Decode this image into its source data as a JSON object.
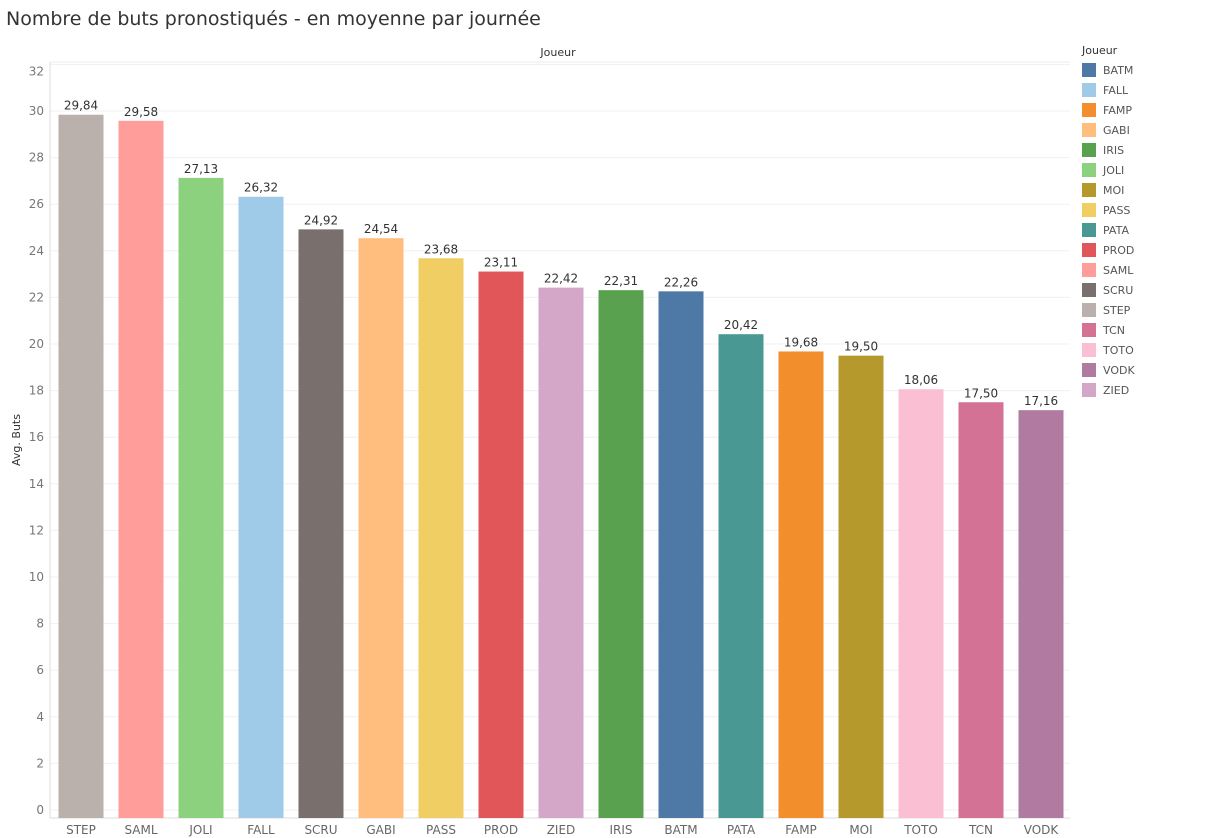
{
  "title": "Nombre de buts pronostiqués - en moyenne par journée",
  "chart_data": {
    "type": "bar",
    "title": "Nombre de buts pronostiqués - en moyenne par journée",
    "xlabel": "Joueur",
    "ylabel": "Avg. Buts",
    "ylim": [
      0,
      32
    ],
    "yticks": [
      0,
      2,
      4,
      6,
      8,
      10,
      12,
      14,
      16,
      18,
      20,
      22,
      24,
      26,
      28,
      30,
      32
    ],
    "categories": [
      "STEP",
      "SAML",
      "JOLI",
      "FALL",
      "SCRU",
      "GABI",
      "PASS",
      "PROD",
      "ZIED",
      "IRIS",
      "BATM",
      "PATA",
      "FAMP",
      "MOI",
      "TOTO",
      "TCN",
      "VODK"
    ],
    "values": [
      29.84,
      29.58,
      27.13,
      26.32,
      24.92,
      24.54,
      23.68,
      23.11,
      22.42,
      22.31,
      22.26,
      20.42,
      19.68,
      19.5,
      18.06,
      17.5,
      17.16
    ],
    "labels": [
      "29,84",
      "29,58",
      "27,13",
      "26,32",
      "24,92",
      "24,54",
      "23,68",
      "23,11",
      "22,42",
      "22,31",
      "22,26",
      "20,42",
      "19,68",
      "19,50",
      "18,06",
      "17,50",
      "17,16"
    ],
    "legend": {
      "title": "Joueur",
      "placement": "right",
      "items": [
        {
          "name": "BATM",
          "color": "#4e79a7"
        },
        {
          "name": "FALL",
          "color": "#a0cbe8"
        },
        {
          "name": "FAMP",
          "color": "#f28e2b"
        },
        {
          "name": "GABI",
          "color": "#ffbe7d"
        },
        {
          "name": "IRIS",
          "color": "#59a14f"
        },
        {
          "name": "JOLI",
          "color": "#8cd17d"
        },
        {
          "name": "MOI",
          "color": "#b6992d"
        },
        {
          "name": "PASS",
          "color": "#f1ce63"
        },
        {
          "name": "PATA",
          "color": "#499894"
        },
        {
          "name": "PROD",
          "color": "#e15759"
        },
        {
          "name": "SAML",
          "color": "#ff9d9a"
        },
        {
          "name": "SCRU",
          "color": "#79706e"
        },
        {
          "name": "STEP",
          "color": "#bab0ac"
        },
        {
          "name": "TCN",
          "color": "#d37295"
        },
        {
          "name": "TOTO",
          "color": "#fabfd2"
        },
        {
          "name": "VODK",
          "color": "#b07aa1"
        },
        {
          "name": "ZIED",
          "color": "#d4a6c8"
        }
      ]
    }
  }
}
